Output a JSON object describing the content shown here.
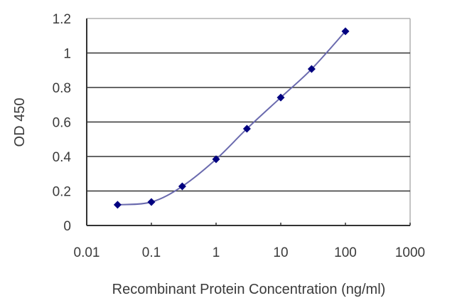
{
  "chart_data": {
    "type": "line",
    "title": "",
    "xlabel": "Recombinant Protein Concentration (ng/ml)",
    "ylabel": "OD 450",
    "xscale": "log",
    "xlim": [
      0.01,
      1000
    ],
    "ylim": [
      0,
      1.2
    ],
    "x_ticks": [
      "0.01",
      "0.1",
      "1",
      "10",
      "100",
      "1000"
    ],
    "y_ticks": [
      "0",
      "0.2",
      "0.4",
      "0.6",
      "0.8",
      "1",
      "1.2"
    ],
    "grid": "horizontal",
    "legend": "none",
    "series": [
      {
        "name": "OD 450",
        "x": [
          0.03,
          0.1,
          0.3,
          1,
          3,
          10,
          30,
          100
        ],
        "values": [
          0.12,
          0.136,
          0.227,
          0.384,
          0.561,
          0.742,
          0.907,
          1.126
        ],
        "marker": "diamond",
        "marker_color": "#000080",
        "line_color": "#6a6aae"
      }
    ]
  },
  "colors": {
    "gridline": "#333333",
    "axis": "#333333",
    "frame_light": "#b0b0b0"
  }
}
